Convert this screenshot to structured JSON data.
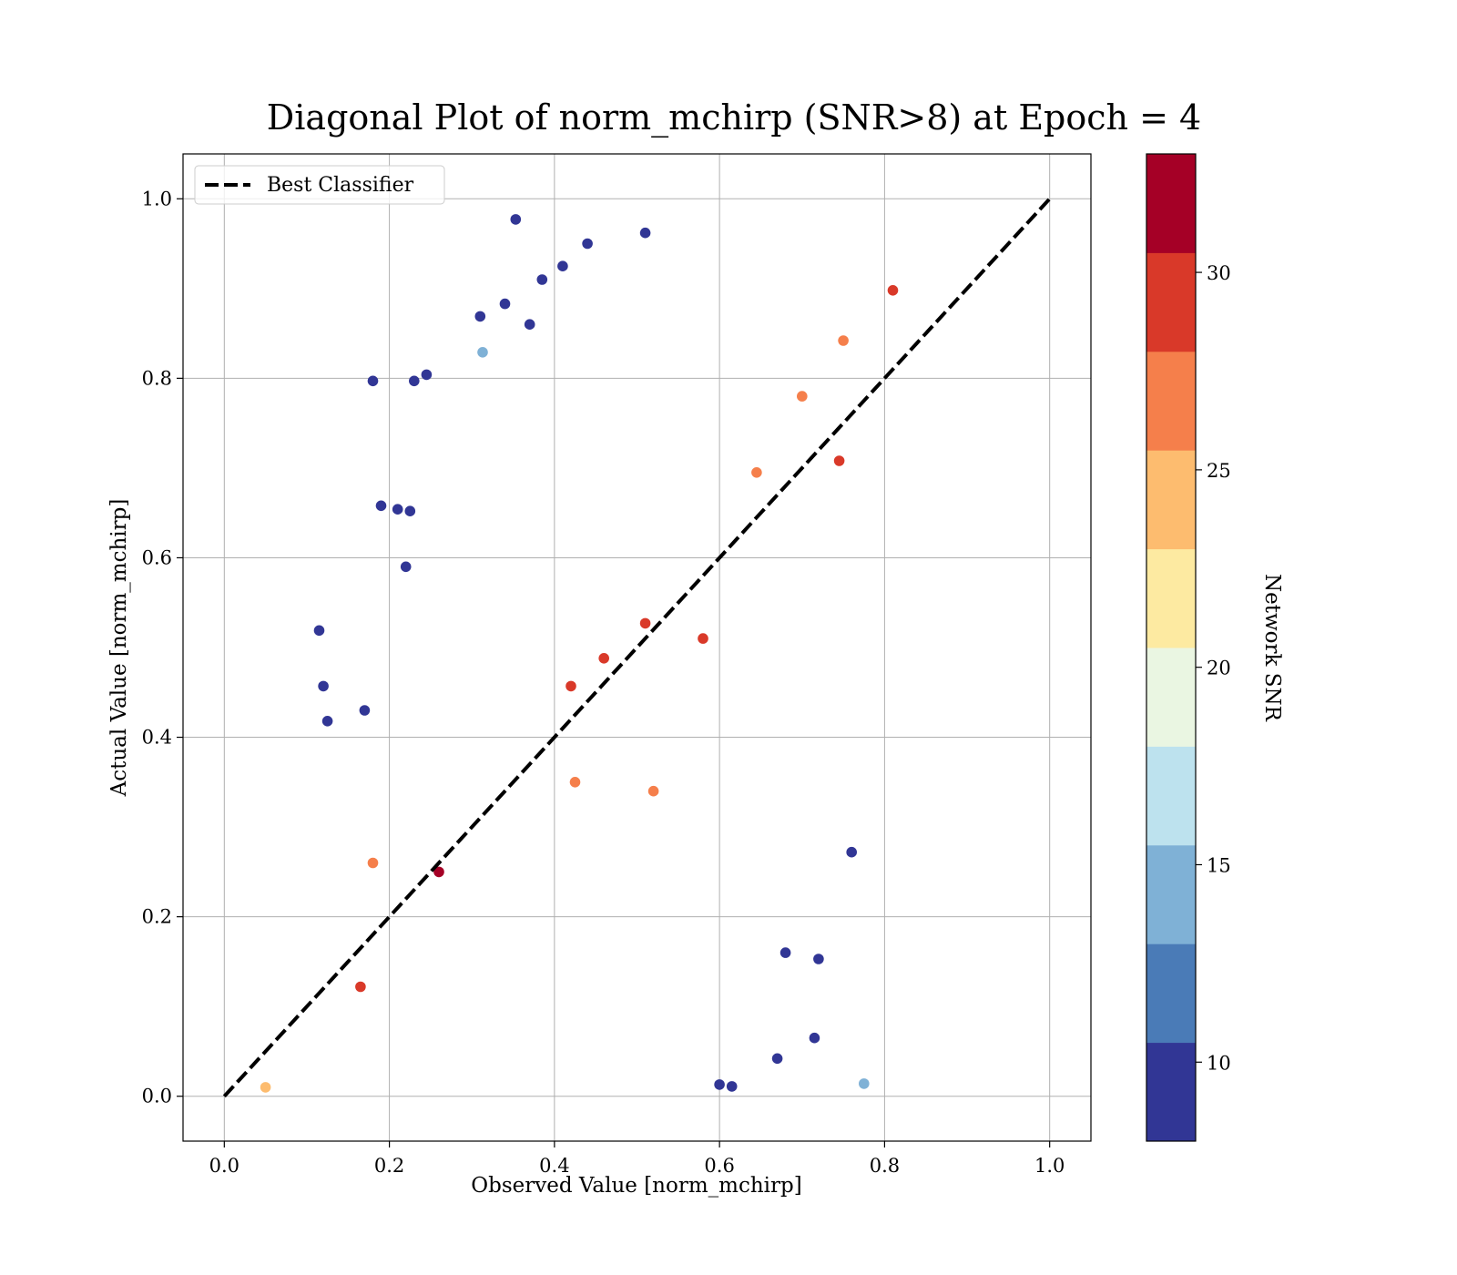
{
  "chart_data": {
    "type": "scatter",
    "title": "Diagonal Plot of norm_mchirp (SNR>8) at Epoch = 4",
    "xlabel": "Observed Value [norm_mchirp]",
    "ylabel": "Actual Value [norm_mchirp]",
    "xlim": [
      -0.05,
      1.05
    ],
    "ylim": [
      -0.05,
      1.05
    ],
    "x_ticks": [
      "0.0",
      "0.2",
      "0.4",
      "0.6",
      "0.8",
      "1.0"
    ],
    "y_ticks": [
      "0.0",
      "0.2",
      "0.4",
      "0.6",
      "0.8",
      "1.0"
    ],
    "grid": true,
    "legend": {
      "position": "top-left",
      "entries": [
        "Best Classifier"
      ]
    },
    "reference_line": {
      "name": "Best Classifier",
      "style": "dashed",
      "color": "#000000",
      "x": [
        0,
        1
      ],
      "y": [
        0,
        1
      ]
    },
    "colorbar": {
      "label": "Network SNR",
      "range": [
        8,
        33
      ],
      "ticks": [
        "10",
        "15",
        "20",
        "25",
        "30"
      ],
      "tick_values": [
        10,
        15,
        20,
        25,
        30
      ],
      "bins": [
        8,
        10.5,
        13,
        15.5,
        18,
        20.5,
        23,
        25.5,
        28,
        30.5,
        33
      ],
      "colors": [
        "#313695",
        "#4a7bb7",
        "#7fb1d6",
        "#bde2ee",
        "#eaf6e2",
        "#fdeaa1",
        "#fdbc6f",
        "#f57f4b",
        "#d93929",
        "#a50026"
      ]
    },
    "series": [
      {
        "points": [
          [
            0.18,
            0.797,
            9
          ],
          [
            0.23,
            0.797,
            9
          ],
          [
            0.245,
            0.804,
            9
          ],
          [
            0.353,
            0.977,
            9
          ],
          [
            0.115,
            0.519,
            9
          ],
          [
            0.19,
            0.658,
            9
          ],
          [
            0.21,
            0.654,
            9
          ],
          [
            0.225,
            0.652,
            9
          ],
          [
            0.22,
            0.59,
            9
          ],
          [
            0.12,
            0.457,
            9
          ],
          [
            0.125,
            0.418,
            9
          ],
          [
            0.17,
            0.43,
            9
          ],
          [
            0.313,
            0.829,
            14
          ],
          [
            0.31,
            0.869,
            9
          ],
          [
            0.34,
            0.883,
            9
          ],
          [
            0.37,
            0.86,
            9
          ],
          [
            0.385,
            0.91,
            9
          ],
          [
            0.41,
            0.925,
            9
          ],
          [
            0.44,
            0.95,
            9
          ],
          [
            0.51,
            0.962,
            9
          ],
          [
            0.6,
            0.013,
            9
          ],
          [
            0.615,
            0.011,
            9
          ],
          [
            0.67,
            0.042,
            9
          ],
          [
            0.715,
            0.065,
            9
          ],
          [
            0.775,
            0.014,
            14
          ],
          [
            0.72,
            0.153,
            9
          ],
          [
            0.68,
            0.16,
            9
          ],
          [
            0.76,
            0.272,
            9
          ],
          [
            0.05,
            0.01,
            23
          ],
          [
            0.26,
            0.25,
            32
          ],
          [
            0.165,
            0.122,
            29
          ],
          [
            0.42,
            0.457,
            29
          ],
          [
            0.46,
            0.488,
            29
          ],
          [
            0.51,
            0.527,
            29
          ],
          [
            0.58,
            0.51,
            29
          ],
          [
            0.745,
            0.708,
            29
          ],
          [
            0.81,
            0.898,
            29
          ],
          [
            0.645,
            0.695,
            27
          ],
          [
            0.75,
            0.842,
            27
          ],
          [
            0.7,
            0.78,
            26
          ],
          [
            0.52,
            0.34,
            26
          ],
          [
            0.425,
            0.35,
            26
          ],
          [
            0.18,
            0.26,
            26
          ]
        ]
      }
    ]
  }
}
